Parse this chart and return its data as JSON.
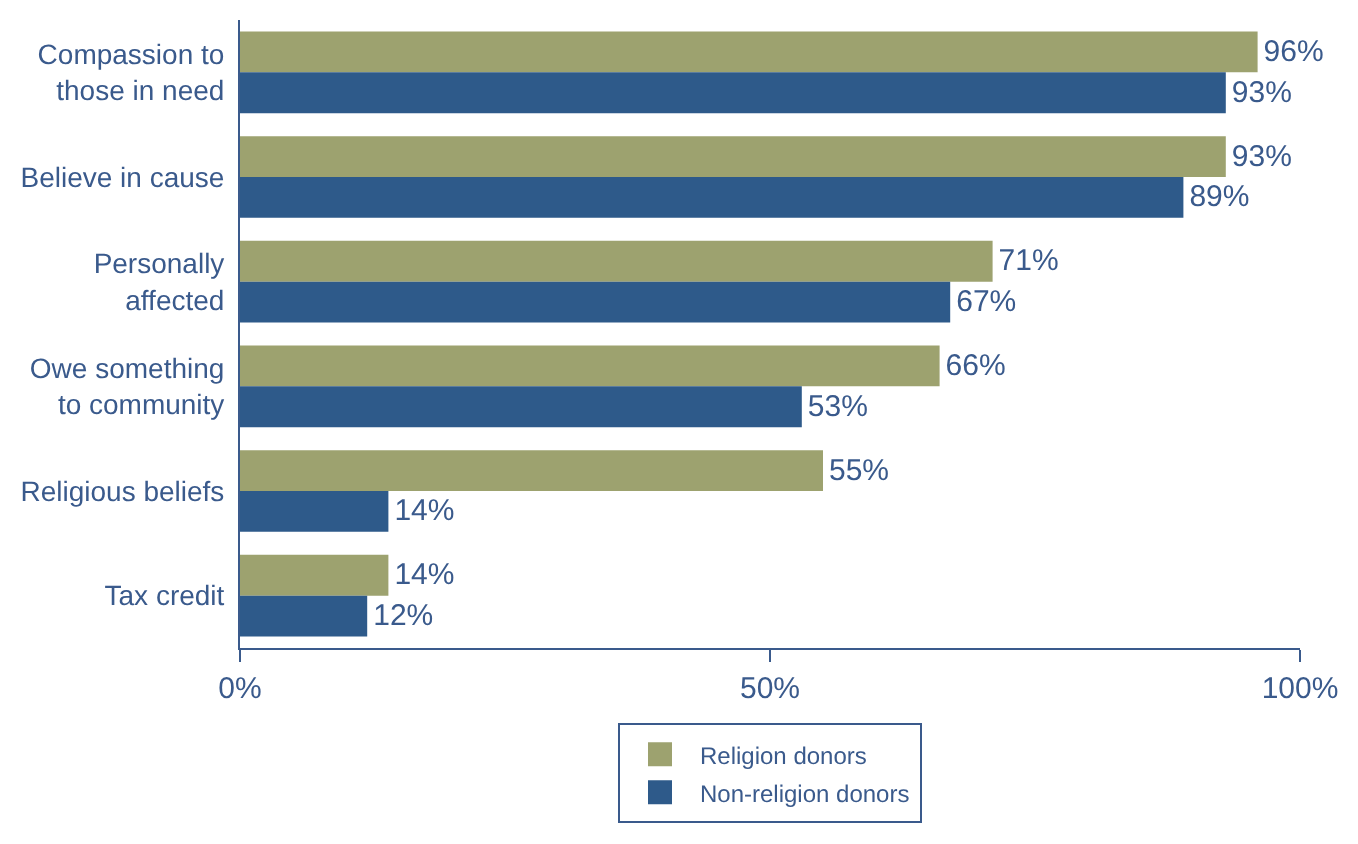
{
  "chart_data": {
    "type": "bar",
    "orientation": "horizontal",
    "categories": [
      "Compassion to\nthose in need",
      "Believe in cause",
      "Personally\naffected",
      "Owe something\nto community",
      "Religious beliefs",
      "Tax credit"
    ],
    "series": [
      {
        "name": "Religion donors",
        "color": "#9da26f",
        "values": [
          96,
          93,
          71,
          66,
          55,
          14
        ],
        "value_labels": [
          "96%",
          "93%",
          "71%",
          "66%",
          "55%",
          "14%"
        ]
      },
      {
        "name": "Non-religion donors",
        "color": "#2e5a8a",
        "values": [
          93,
          89,
          67,
          53,
          14,
          12
        ],
        "value_labels": [
          "93%",
          "89%",
          "67%",
          "53%",
          "14%",
          "12%"
        ]
      }
    ],
    "xlim": [
      0,
      100
    ],
    "xticks": [
      {
        "value": 0,
        "label": "0%"
      },
      {
        "value": 50,
        "label": "50%"
      },
      {
        "value": 100,
        "label": "100%"
      }
    ],
    "legend": "bottom"
  }
}
